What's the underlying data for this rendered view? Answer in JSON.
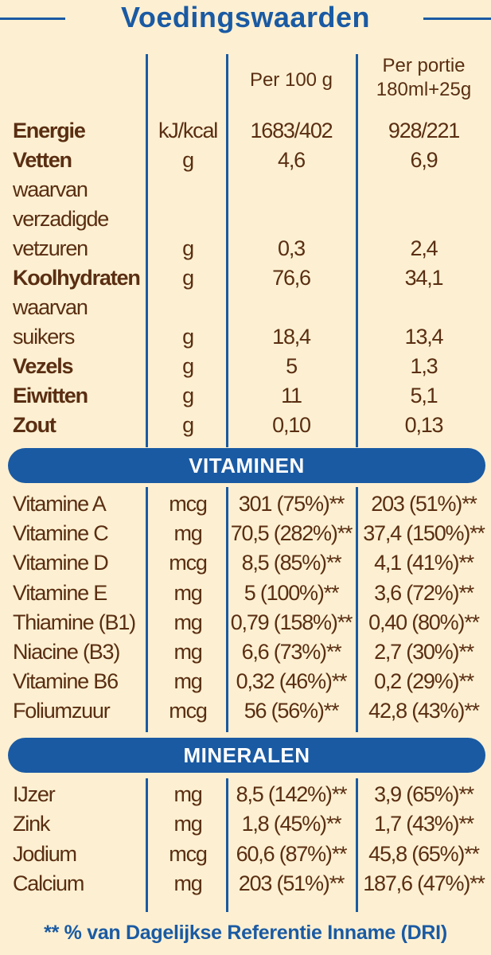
{
  "title": "Voedingswaarden",
  "columns": {
    "per100": "Per 100 g",
    "portie_line1": "Per portie",
    "portie_line2": "180ml+25g"
  },
  "nutrients": [
    {
      "name": "Energie",
      "unit": "kJ/kcal",
      "per100": "1683/402",
      "portie": "928/221"
    },
    {
      "name": "Vetten",
      "unit": "g",
      "per100": "4,6",
      "portie": "6,9"
    },
    {
      "name": "waarvan"
    },
    {
      "name": "verzadigde"
    },
    {
      "name": "vetzuren",
      "unit": "g",
      "per100": "0,3",
      "portie": "2,4"
    },
    {
      "name": "Koolhydraten",
      "unit": "g",
      "per100": "76,6",
      "portie": "34,1"
    },
    {
      "name": "waarvan"
    },
    {
      "name": "suikers",
      "unit": "g",
      "per100": "18,4",
      "portie": "13,4"
    },
    {
      "name": "Vezels",
      "unit": "g",
      "per100": "5",
      "portie": "1,3"
    },
    {
      "name": "Eiwitten",
      "unit": "g",
      "per100": "11",
      "portie": "5,1"
    },
    {
      "name": "Zout",
      "unit": "g",
      "per100": "0,10",
      "portie": "0,13"
    }
  ],
  "vitamins_title": "VITAMINEN",
  "vitamins": [
    {
      "name": "Vitamine A",
      "unit": "mcg",
      "per100": "301 (75%)**",
      "portie": "203 (51%)**"
    },
    {
      "name": "Vitamine C",
      "unit": "mg",
      "per100": "70,5 (282%)**",
      "portie": "37,4 (150%)**"
    },
    {
      "name": "Vitamine D",
      "unit": "mcg",
      "per100": "8,5 (85%)**",
      "portie": "4,1 (41%)**"
    },
    {
      "name": "Vitamine E",
      "unit": "mg",
      "per100": "5 (100%)**",
      "portie": "3,6 (72%)**"
    },
    {
      "name": "Thiamine (B1)",
      "unit": "mg",
      "per100": "0,79 (158%)**",
      "portie": "0,40 (80%)**"
    },
    {
      "name": "Niacine (B3)",
      "unit": "mg",
      "per100": "6,6 (73%)**",
      "portie": "2,7 (30%)**"
    },
    {
      "name": "Vitamine B6",
      "unit": "mg",
      "per100": "0,32 (46%)**",
      "portie": "0,2 (29%)**"
    },
    {
      "name": "Foliumzuur",
      "unit": "mcg",
      "per100": "56 (56%)**",
      "portie": "42,8 (43%)**"
    }
  ],
  "minerals_title": "MINERALEN",
  "minerals": [
    {
      "name": "IJzer",
      "unit": "mg",
      "per100": "8,5 (142%)**",
      "portie": "3,9 (65%)**"
    },
    {
      "name": "Zink",
      "unit": "mg",
      "per100": "1,8 (45%)**",
      "portie": "1,7 (43%)**"
    },
    {
      "name": "Jodium",
      "unit": "mcg",
      "per100": "60,6 (87%)**",
      "portie": "45,8 (65%)**"
    },
    {
      "name": "Calcium",
      "unit": "mg",
      "per100": "203 (51%)**",
      "portie": "187,6 (47%)**"
    }
  ],
  "footnote": "** % van Dagelijkse Referentie Inname (DRI)",
  "colors": {
    "background": "#fdf0d2",
    "text": "#5a2e12",
    "accent": "#1a5aa3"
  }
}
